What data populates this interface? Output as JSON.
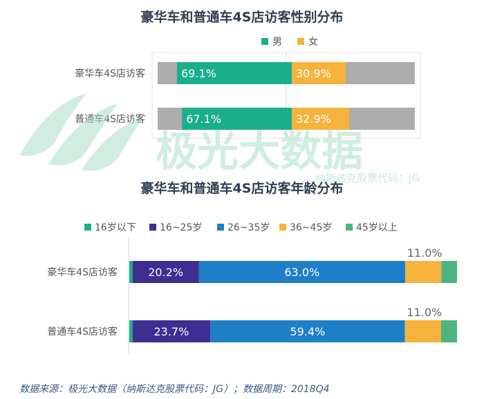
{
  "gender_chart": {
    "title": "豪华车和普通车4S店访客性别分布",
    "legend": [
      {
        "name": "男",
        "color": "#1aaf8c"
      },
      {
        "name": "女",
        "color": "#f6b33b"
      }
    ],
    "background_color": "#acacac"
  },
  "age_chart": {
    "title": "豪华车和普通车4S店访客年龄分布",
    "legend": [
      {
        "name": "16岁以下",
        "color": "#19b18a"
      },
      {
        "name": "16~25岁",
        "color": "#3e2e92"
      },
      {
        "name": "26~35岁",
        "color": "#1f7fc6"
      },
      {
        "name": "36~45岁",
        "color": "#f7b23c"
      },
      {
        "name": "45岁以上",
        "color": "#4cb57f"
      }
    ]
  },
  "watermark": {
    "brand": "极光大数据",
    "sub": "纳斯达克股票代码：JG"
  },
  "source": "数据来源：极光大数据（纳斯达克股票代码：JG）；数据周期：2018Q4",
  "chart_data": [
    {
      "type": "bar",
      "stacked": true,
      "orientation": "horizontal",
      "title": "豪华车和普通车4S店访客性别分布",
      "categories": [
        "豪华车4S店访客",
        "普通车4S店访客"
      ],
      "series": [
        {
          "name": "男",
          "values": [
            69.1,
            67.1
          ],
          "labels": [
            "69.1%",
            "67.1%"
          ]
        },
        {
          "name": "女",
          "values": [
            30.9,
            32.9
          ],
          "labels": [
            "30.9%",
            "32.9%"
          ]
        }
      ],
      "legend_position": "top-right"
    },
    {
      "type": "bar",
      "stacked": true,
      "orientation": "horizontal",
      "title": "豪华车和普通车4S店访客年龄分布",
      "categories": [
        "豪华车4S店访客",
        "普通车4S店访客"
      ],
      "series": [
        {
          "name": "16岁以下",
          "values": [
            1.0,
            1.0
          ],
          "labels": [
            "",
            ""
          ]
        },
        {
          "name": "16~25岁",
          "values": [
            20.2,
            23.7
          ],
          "labels": [
            "20.2%",
            "23.7%"
          ]
        },
        {
          "name": "26~35岁",
          "values": [
            63.0,
            59.4
          ],
          "labels": [
            "63.0%",
            "59.4%"
          ]
        },
        {
          "name": "36~45岁",
          "values": [
            11.0,
            11.0
          ],
          "labels": [
            "11.0%",
            "11.0%"
          ]
        },
        {
          "name": "45岁以上",
          "values": [
            4.8,
            4.9
          ],
          "labels": [
            "",
            ""
          ]
        }
      ],
      "legend_position": "top-left"
    }
  ]
}
